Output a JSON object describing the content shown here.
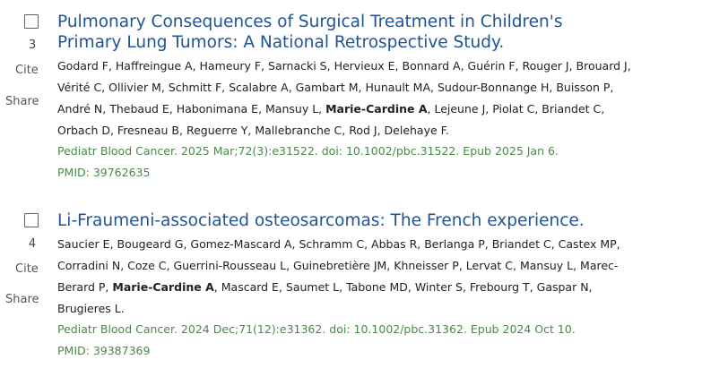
{
  "results": [
    {
      "number": "3",
      "cite_label": "Cite",
      "share_label": "Share",
      "title": "Pulmonary Consequences of Surgical Treatment in Children's Primary Lung Tumors: A National Retrospective Study.",
      "authors_before": "Godard F, Haffreingue A, Hameury F, Sarnacki S, Hervieux E, Bonnard A, Guérin F, Rouger J, Brouard J, Vérité C, Ollivier M, Schmitt F, Scalabre A, Gambart M, Hunault MA, Sudour-Bonnange H, Buisson P, André N, Thebaud E, Habonimana E, Mansuy L, ",
      "authors_highlight": "Marie-Cardine A",
      "authors_after": ", Lejeune J, Piolat C, Briandet C, Orbach D, Fresneau B, Reguerre Y, Mallebranche C, Rod J, Delehaye F.",
      "journal": "Pediatr Blood Cancer. 2025 Mar;72(3):e31522. doi: 10.1002/pbc.31522. Epub 2025 Jan 6.",
      "pmid": "PMID: 39762635"
    },
    {
      "number": "4",
      "cite_label": "Cite",
      "share_label": "Share",
      "title": "Li-Fraumeni-associated osteosarcomas: The French experience.",
      "authors_before": "Saucier E, Bougeard G, Gomez-Mascard A, Schramm C, Abbas R, Berlanga P, Briandet C, Castex MP, Corradini N, Coze C, Guerrini-Rousseau L, Guinebretière JM, Khneisser P, Lervat C, Mansuy L, Marec-Berard P, ",
      "authors_highlight": "Marie-Cardine A",
      "authors_after": ", Mascard E, Saumet L, Tabone MD, Winter S, Frebourg T, Gaspar N, Brugieres L.",
      "journal": "Pediatr Blood Cancer. 2024 Dec;71(12):e31362. doi: 10.1002/pbc.31362. Epub 2024 Oct 10.",
      "pmid": "PMID: 39387369"
    }
  ],
  "colors": {
    "title_link": "#205493",
    "journal_text": "#4a8a47",
    "body_text": "#212121"
  }
}
